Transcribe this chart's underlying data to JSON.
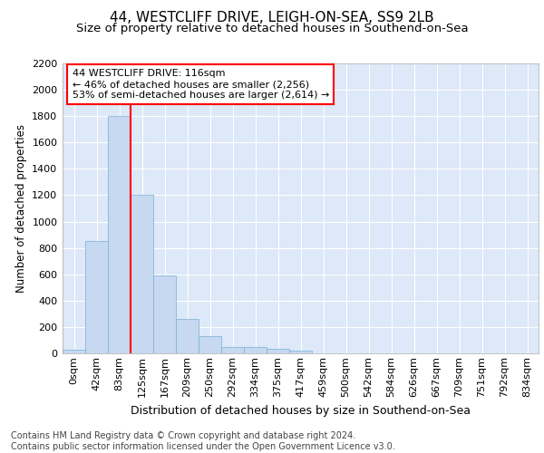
{
  "title1": "44, WESTCLIFF DRIVE, LEIGH-ON-SEA, SS9 2LB",
  "title2": "Size of property relative to detached houses in Southend-on-Sea",
  "xlabel": "Distribution of detached houses by size in Southend-on-Sea",
  "ylabel": "Number of detached properties",
  "footnote": "Contains HM Land Registry data © Crown copyright and database right 2024.\nContains public sector information licensed under the Open Government Licence v3.0.",
  "bin_labels": [
    "0sqm",
    "42sqm",
    "83sqm",
    "125sqm",
    "167sqm",
    "209sqm",
    "250sqm",
    "292sqm",
    "334sqm",
    "375sqm",
    "417sqm",
    "459sqm",
    "500sqm",
    "542sqm",
    "584sqm",
    "626sqm",
    "667sqm",
    "709sqm",
    "751sqm",
    "792sqm",
    "834sqm"
  ],
  "bar_heights": [
    25,
    850,
    1800,
    1200,
    590,
    260,
    130,
    50,
    45,
    35,
    20,
    0,
    0,
    0,
    0,
    0,
    0,
    0,
    0,
    0,
    0
  ],
  "bar_color": "#c6d9f0",
  "bar_edge_color": "#7bafd4",
  "vline_color": "red",
  "annotation_text": "44 WESTCLIFF DRIVE: 116sqm\n← 46% of detached houses are smaller (2,256)\n53% of semi-detached houses are larger (2,614) →",
  "annotation_box_color": "white",
  "annotation_box_edge": "red",
  "ylim": [
    0,
    2200
  ],
  "yticks": [
    0,
    200,
    400,
    600,
    800,
    1000,
    1200,
    1400,
    1600,
    1800,
    2000,
    2200
  ],
  "bg_color": "#dde8f8",
  "title1_fontsize": 11,
  "title2_fontsize": 9.5,
  "xlabel_fontsize": 9,
  "ylabel_fontsize": 8.5,
  "tick_fontsize": 8,
  "footnote_fontsize": 7,
  "annotation_fontsize": 8
}
